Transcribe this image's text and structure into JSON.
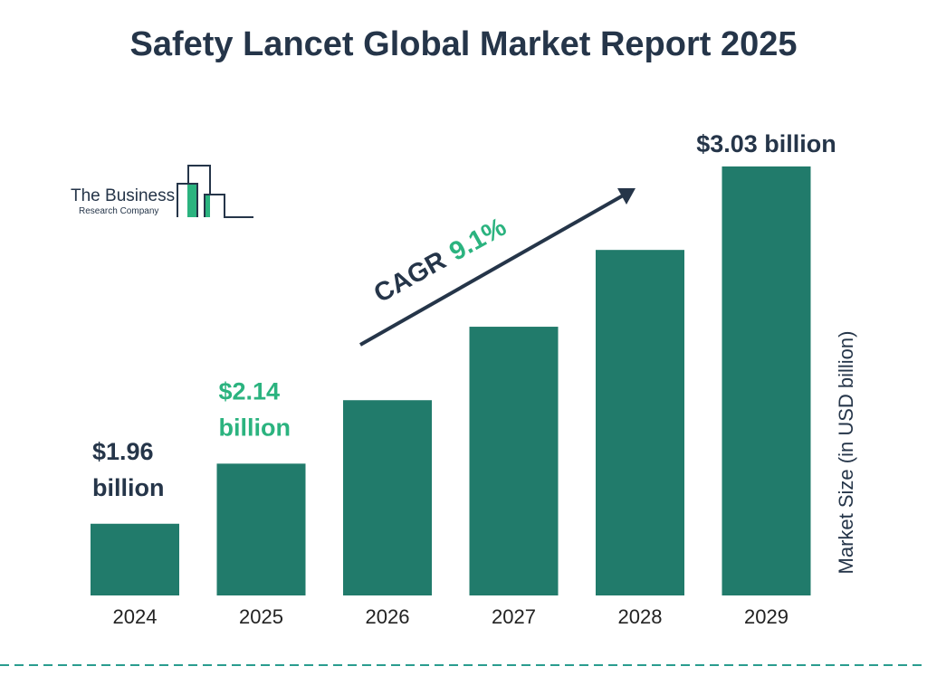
{
  "title": "Safety Lancet Global Market Report 2025",
  "logo": {
    "line1": "The Business",
    "line2": "Research Company"
  },
  "colors": {
    "bar": "#217b6b",
    "dark_text": "#253549",
    "highlight": "#2bb37f",
    "dashed_line": "#2a9d8f"
  },
  "chart_data": {
    "type": "bar",
    "categories": [
      "2024",
      "2025",
      "2026",
      "2027",
      "2028",
      "2029"
    ],
    "values": [
      1.96,
      2.14,
      2.33,
      2.55,
      2.78,
      3.03
    ],
    "data_labels": [
      {
        "category": "2024",
        "line1": "$1.96",
        "line2": "billion"
      },
      {
        "category": "2025",
        "line1": "$2.14",
        "line2": "billion"
      },
      {
        "category": "2029",
        "line1": "$3.03 billion",
        "line2": ""
      }
    ],
    "ylabel": "Market Size (in USD billion)",
    "xlabel": "",
    "grid": false,
    "annotation": {
      "prefix": "CAGR",
      "value": "9.1%"
    }
  }
}
